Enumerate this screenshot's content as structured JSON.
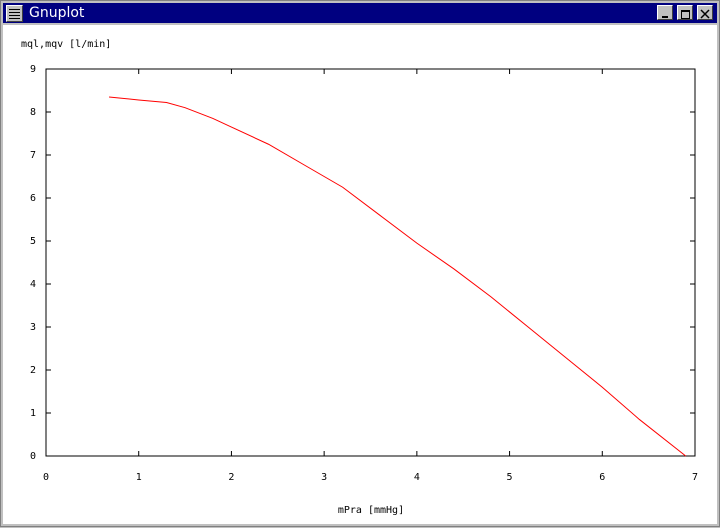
{
  "window": {
    "title": "Gnuplot"
  },
  "chart_data": {
    "type": "line",
    "ylabel": "mql,mqv [l/min]",
    "xlabel": "mPra [mmHg]",
    "xlim": [
      0,
      7
    ],
    "ylim": [
      0,
      9
    ],
    "xticks": [
      0,
      1,
      2,
      3,
      4,
      5,
      6,
      7
    ],
    "yticks": [
      0,
      1,
      2,
      3,
      4,
      5,
      6,
      7,
      8,
      9
    ],
    "series": [
      {
        "color": "#ff0000",
        "x": [
          0.68,
          1.0,
          1.3,
          1.5,
          1.8,
          2.0,
          2.4,
          2.8,
          3.2,
          3.6,
          4.0,
          4.4,
          4.8,
          5.2,
          5.6,
          6.0,
          6.4,
          6.9
        ],
        "values": [
          8.35,
          8.28,
          8.22,
          8.1,
          7.85,
          7.65,
          7.25,
          6.75,
          6.25,
          5.6,
          4.95,
          4.35,
          3.7,
          3.0,
          2.3,
          1.6,
          0.85,
          0.0
        ]
      }
    ]
  }
}
